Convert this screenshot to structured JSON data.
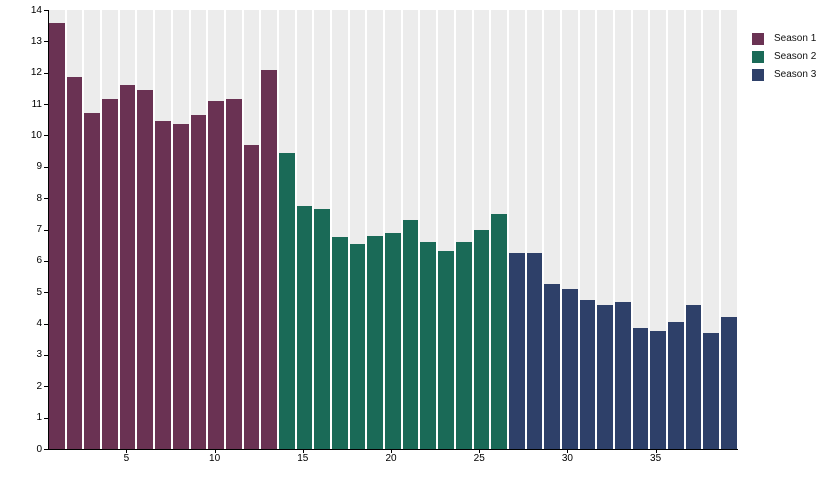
{
  "chart_data": {
    "type": "bar",
    "title": "",
    "xlabel": "",
    "ylabel": "",
    "ylim": [
      0,
      14
    ],
    "ytick_step": 1,
    "xticks": [
      5,
      10,
      15,
      20,
      25,
      30,
      35
    ],
    "n_bars": 39,
    "grid": "off",
    "track_color": "#ececec",
    "legend_position": "top-right",
    "series": [
      {
        "name": "Season 1",
        "color": "#6a3253",
        "x_start": 1,
        "values": [
          13.6,
          11.85,
          10.7,
          11.15,
          11.6,
          11.45,
          10.45,
          10.35,
          10.65,
          11.1,
          11.15,
          9.7,
          12.1
        ]
      },
      {
        "name": "Season 2",
        "color": "#1a6a57",
        "x_start": 14,
        "values": [
          9.45,
          7.75,
          7.65,
          6.75,
          6.55,
          6.8,
          6.9,
          7.3,
          6.6,
          6.3,
          6.6,
          7.0,
          7.5
        ]
      },
      {
        "name": "Season 3",
        "color": "#2e4069",
        "x_start": 27,
        "values": [
          6.25,
          6.25,
          5.25,
          5.1,
          4.75,
          4.6,
          4.7,
          3.85,
          3.75,
          4.05,
          4.6,
          3.7,
          4.2
        ]
      }
    ]
  }
}
